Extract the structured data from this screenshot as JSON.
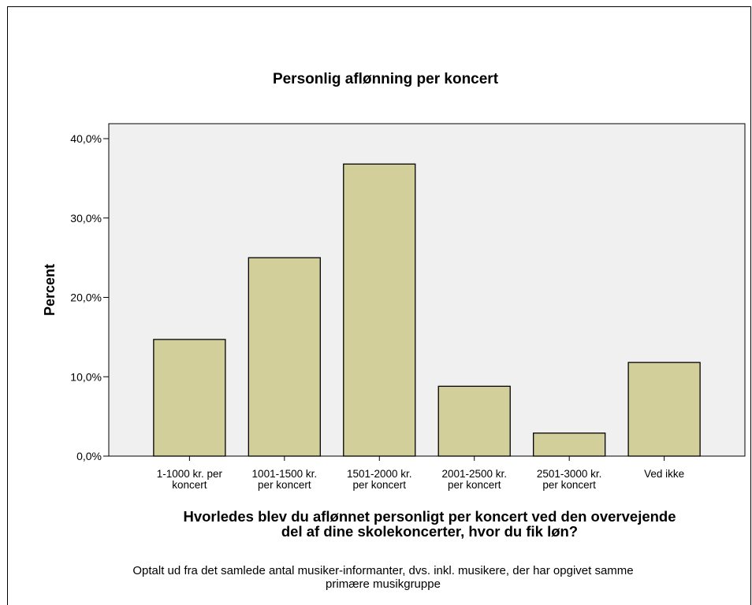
{
  "chart_data": {
    "type": "bar",
    "title": "Personlig aflønning per koncert",
    "ylabel": "Percent",
    "xlabel_lines": [
      "Hvorledes blev du aflønnet personligt per koncert ved den overvejende",
      "del af dine skolekoncerter, hvor du fik løn?"
    ],
    "categories": [
      [
        "1-1000 kr. per",
        "koncert"
      ],
      [
        "1001-1500 kr.",
        "per koncert"
      ],
      [
        "1501-2000 kr.",
        "per koncert"
      ],
      [
        "2001-2500 kr.",
        "per koncert"
      ],
      [
        "2501-3000 kr.",
        "per koncert"
      ],
      [
        "Ved ikke"
      ]
    ],
    "values": [
      14.7,
      25.0,
      36.8,
      8.8,
      2.9,
      11.8
    ],
    "ylim": [
      0,
      40
    ],
    "yticks": [
      {
        "value": 0,
        "label": "0,0%"
      },
      {
        "value": 10,
        "label": "10,0%"
      },
      {
        "value": 20,
        "label": "20,0%"
      },
      {
        "value": 30,
        "label": "30,0%"
      },
      {
        "value": 40,
        "label": "40,0%"
      }
    ],
    "footnote_lines": [
      "Optalt ud fra det samlede antal musiker-informanter, dvs. inkl. musikere, der har opgivet samme",
      "primære musikgruppe"
    ],
    "colors": {
      "bar_fill": "#d3cf9b",
      "bar_stroke": "#000000",
      "plot_bg": "#f0f0f0"
    },
    "grid": false,
    "legend": "none"
  }
}
